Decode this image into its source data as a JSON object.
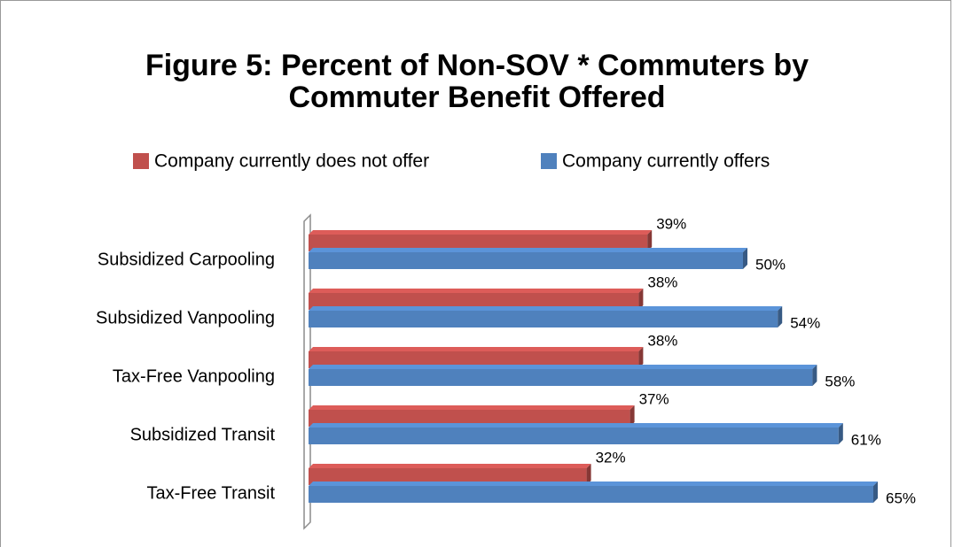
{
  "chart_data": {
    "type": "hbar3d",
    "title": "Figure 5: Percent of  Non-SOV * Commuters by",
    "title_line2": "Commuter Benefit Offered",
    "categories": [
      "Subsidized Carpooling",
      "Subsidized Vanpooling",
      "Tax-Free Vanpooling",
      "Subsidized Transit",
      "Tax-Free Transit"
    ],
    "series": [
      {
        "name": "Company currently does not offer",
        "color": "#c0504d",
        "values": [
          39,
          38,
          38,
          37,
          32
        ],
        "value_labels": [
          "39%",
          "38%",
          "38%",
          "37%",
          "32%"
        ]
      },
      {
        "name": "Company currently offers",
        "color": "#4f81bd",
        "values": [
          50,
          54,
          58,
          61,
          65
        ],
        "value_labels": [
          "50%",
          "54%",
          "58%",
          "61%",
          "65%"
        ]
      }
    ],
    "xlim": [
      0,
      70
    ],
    "legend": "top"
  }
}
